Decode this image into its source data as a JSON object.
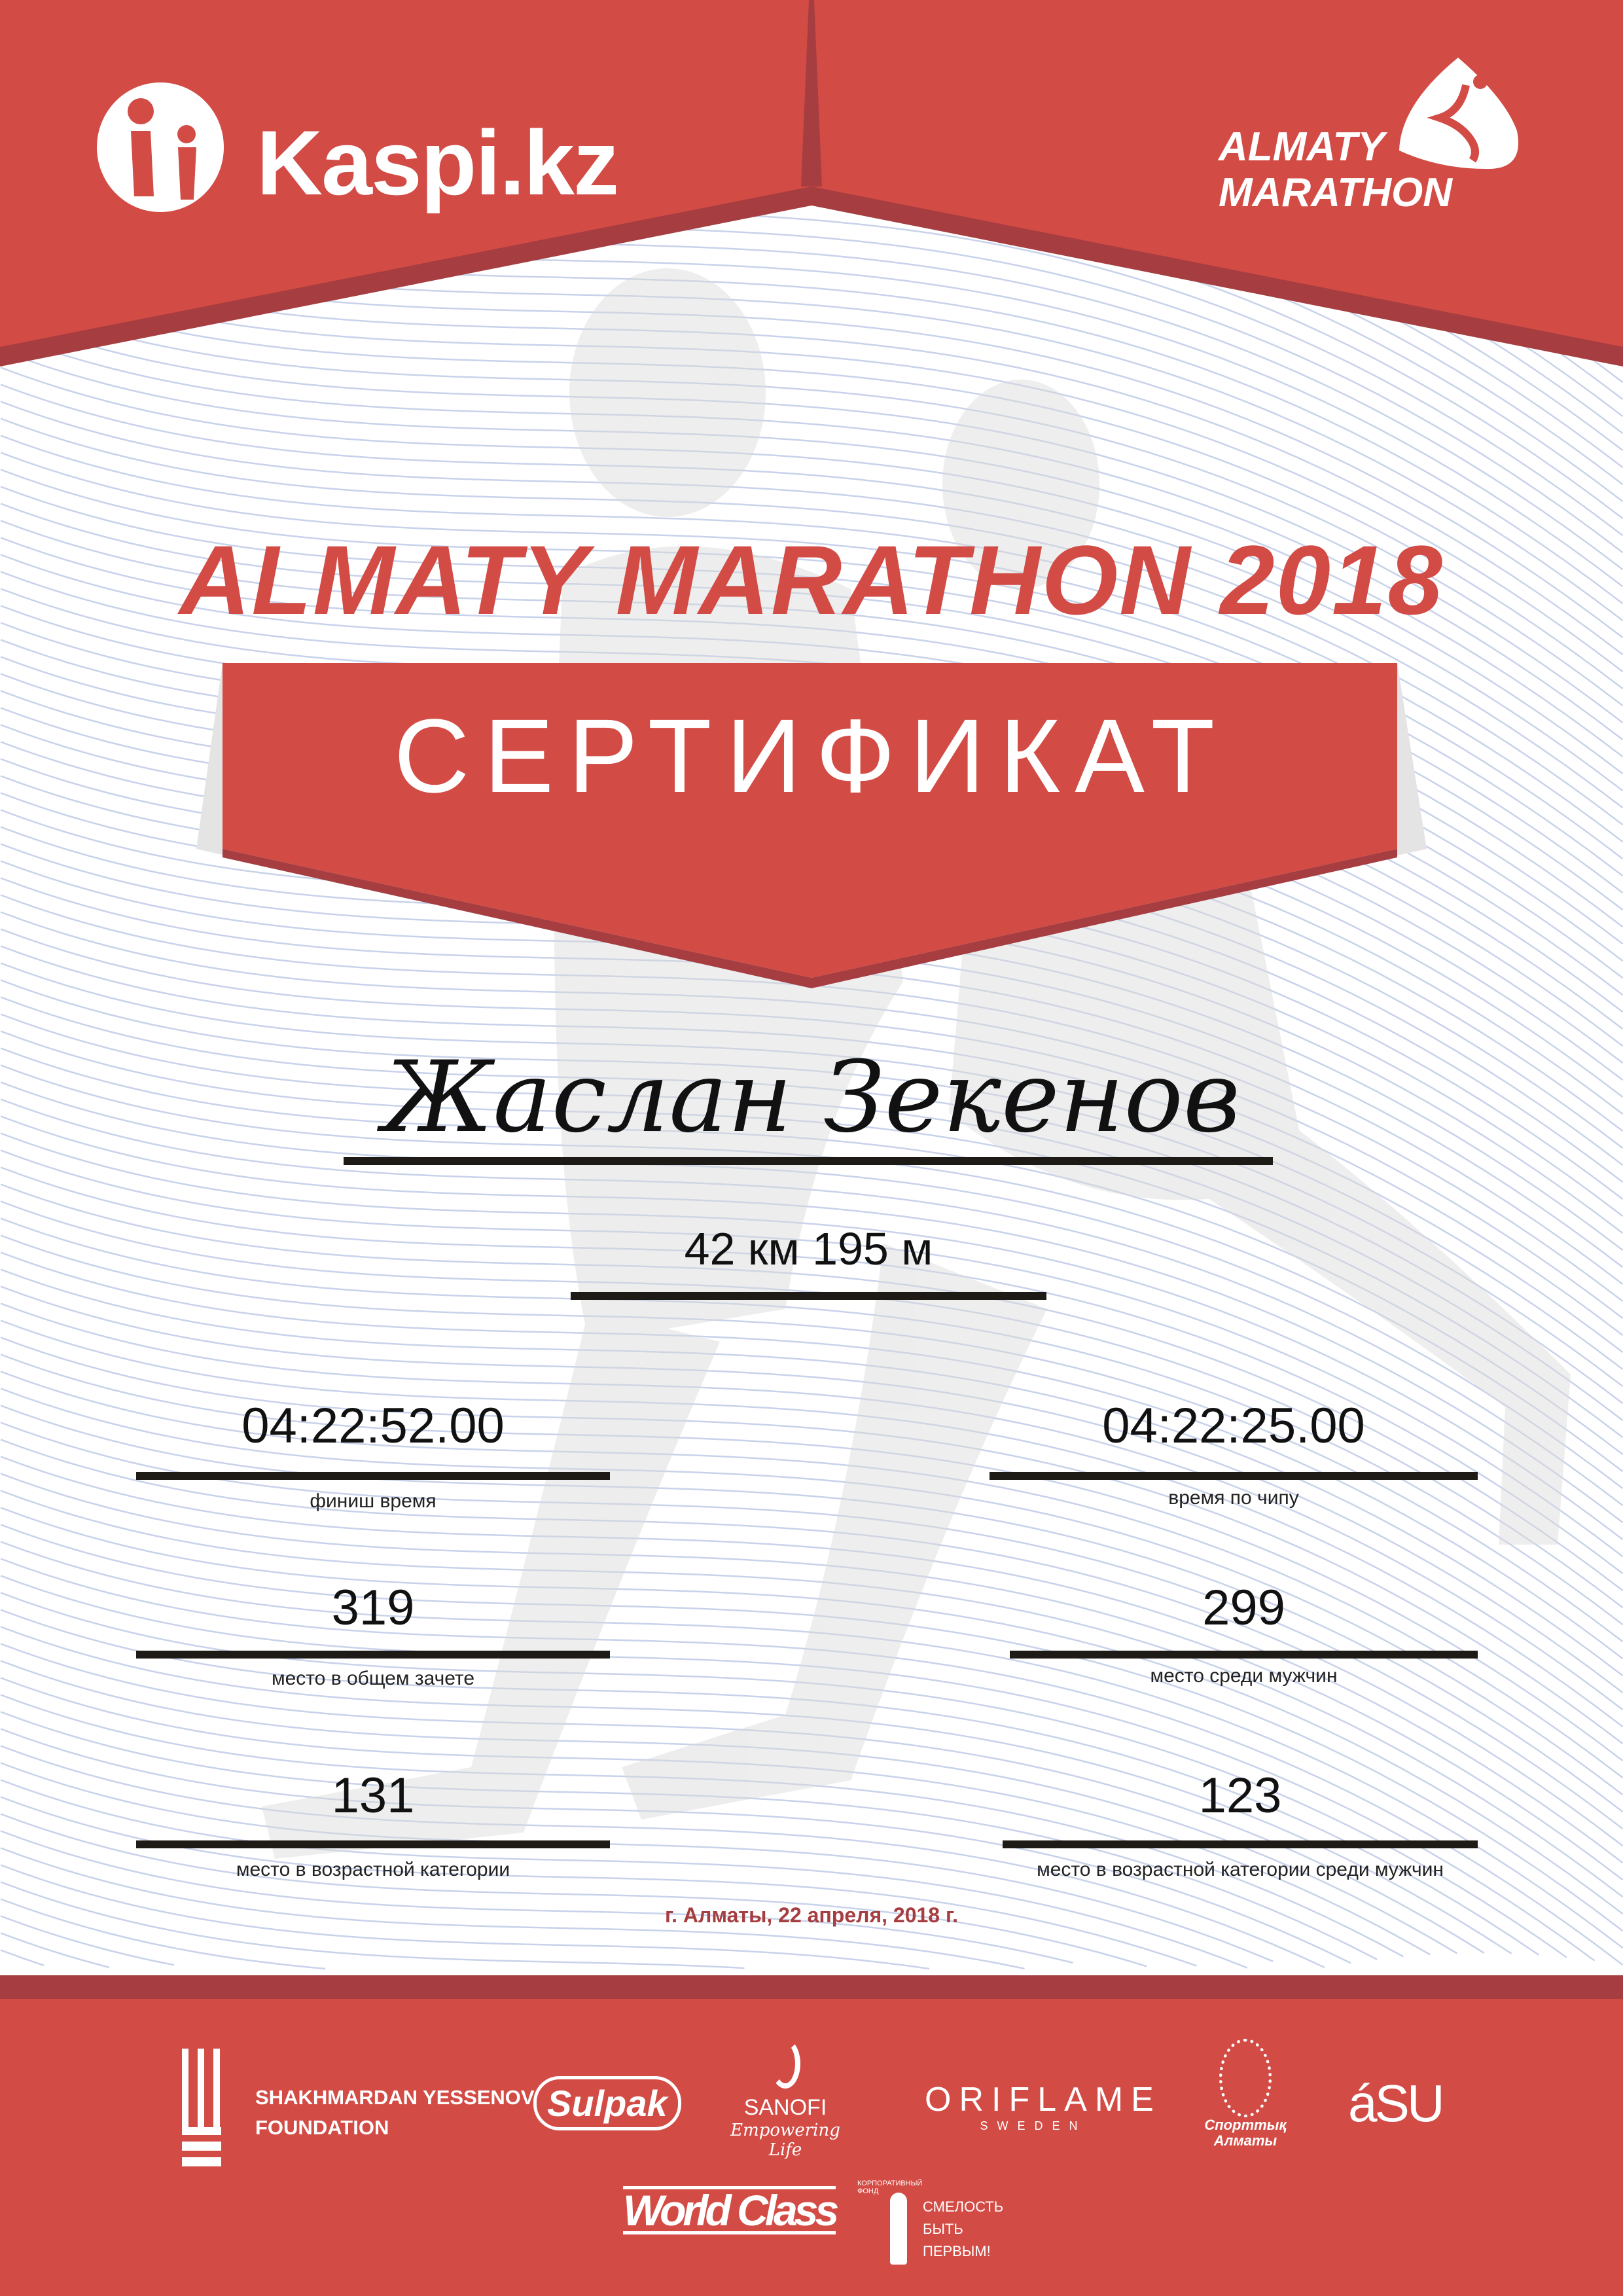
{
  "colors": {
    "red": "#d34b45",
    "dark_red": "#a63d40",
    "lines": "#c8d2ea"
  },
  "header": {
    "left_logo": {
      "text": "Kaspi.kz",
      "icon": "kaspi-figure-icon"
    },
    "right_logo": {
      "line1": "ALMATY",
      "line2": "MARATHON",
      "icon": "runner-drop-icon"
    }
  },
  "title": "ALMATY MARATHON 2018",
  "banner": "СЕРТИФИКАТ",
  "participant_name": "Жаслан Зекенов",
  "distance": "42 км 195 м",
  "results": [
    {
      "value": "04:22:52.00",
      "label": "финиш время"
    },
    {
      "value": "04:22:25.00",
      "label": "время по чипу"
    },
    {
      "value": "319",
      "label": "место в общем зачете"
    },
    {
      "value": "299",
      "label": "место среди мужчин"
    },
    {
      "value": "131",
      "label": "место в возрастной категории"
    },
    {
      "value": "123",
      "label": "место в возрастной категории среди мужчин"
    }
  ],
  "date": "г. Алматы, 22 апреля, 2018 г.",
  "sponsors": {
    "yessenov": {
      "line1": "SHAKHMARDAN YESSENOV",
      "line2": "FOUNDATION"
    },
    "sulpak": "Sulpak",
    "sanofi": {
      "name": "SANOFI",
      "tagline": "Empowering Life"
    },
    "oriflame": {
      "name": "ORIFLAME",
      "sub": "SWEDEN"
    },
    "sport_almaty": {
      "line1": "Спорттық",
      "line2": "Алматы"
    },
    "asu": "áSU",
    "worldclass": "World Class",
    "fund": {
      "arc": "КОРПОРАТИВНЫЙ ФОНД",
      "line1": "СМЕЛОСТЬ",
      "line2": "БЫТЬ",
      "line3": "ПЕРВЫМ!"
    }
  }
}
